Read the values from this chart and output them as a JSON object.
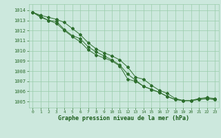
{
  "background_color": "#cce8dd",
  "grid_color": "#99ccaa",
  "line_color": "#2d6e2d",
  "marker_color": "#2d6e2d",
  "xlabel": "Graphe pression niveau de la mer (hPa)",
  "xlabel_color": "#1a5c1a",
  "tick_color": "#2d6e2d",
  "ylim": [
    1004.4,
    1014.6
  ],
  "xlim": [
    -0.5,
    23.5
  ],
  "yticks": [
    1005,
    1006,
    1007,
    1008,
    1009,
    1010,
    1011,
    1012,
    1013,
    1014
  ],
  "xticks": [
    0,
    1,
    2,
    3,
    4,
    5,
    6,
    7,
    8,
    9,
    10,
    11,
    12,
    13,
    14,
    15,
    16,
    17,
    18,
    19,
    20,
    21,
    22,
    23
  ],
  "series1": [
    1013.8,
    1013.5,
    1013.3,
    1013.1,
    1012.8,
    1012.2,
    1011.6,
    1010.8,
    1010.2,
    1009.8,
    1009.5,
    1009.1,
    1008.4,
    1007.4,
    1007.2,
    1006.6,
    1006.1,
    1005.8,
    1005.3,
    1005.1,
    1005.1,
    1005.3,
    1005.4,
    1005.3
  ],
  "series2": [
    1013.8,
    1013.4,
    1013.0,
    1012.9,
    1012.1,
    1011.5,
    1011.2,
    1010.4,
    1009.9,
    1009.5,
    1009.1,
    1008.6,
    1007.7,
    1007.1,
    1006.5,
    1006.2,
    1005.9,
    1005.5,
    1005.2,
    1005.1,
    1005.1,
    1005.2,
    1005.3,
    1005.2
  ],
  "series3": [
    1013.8,
    1013.3,
    1013.0,
    1012.7,
    1012.0,
    1011.4,
    1010.9,
    1010.1,
    1009.6,
    1009.3,
    1009.0,
    1008.5,
    1007.2,
    1007.0,
    1006.5,
    1006.2,
    1005.9,
    1005.5,
    1005.2,
    1005.1,
    1005.1,
    1005.2,
    1005.3,
    1005.2
  ]
}
